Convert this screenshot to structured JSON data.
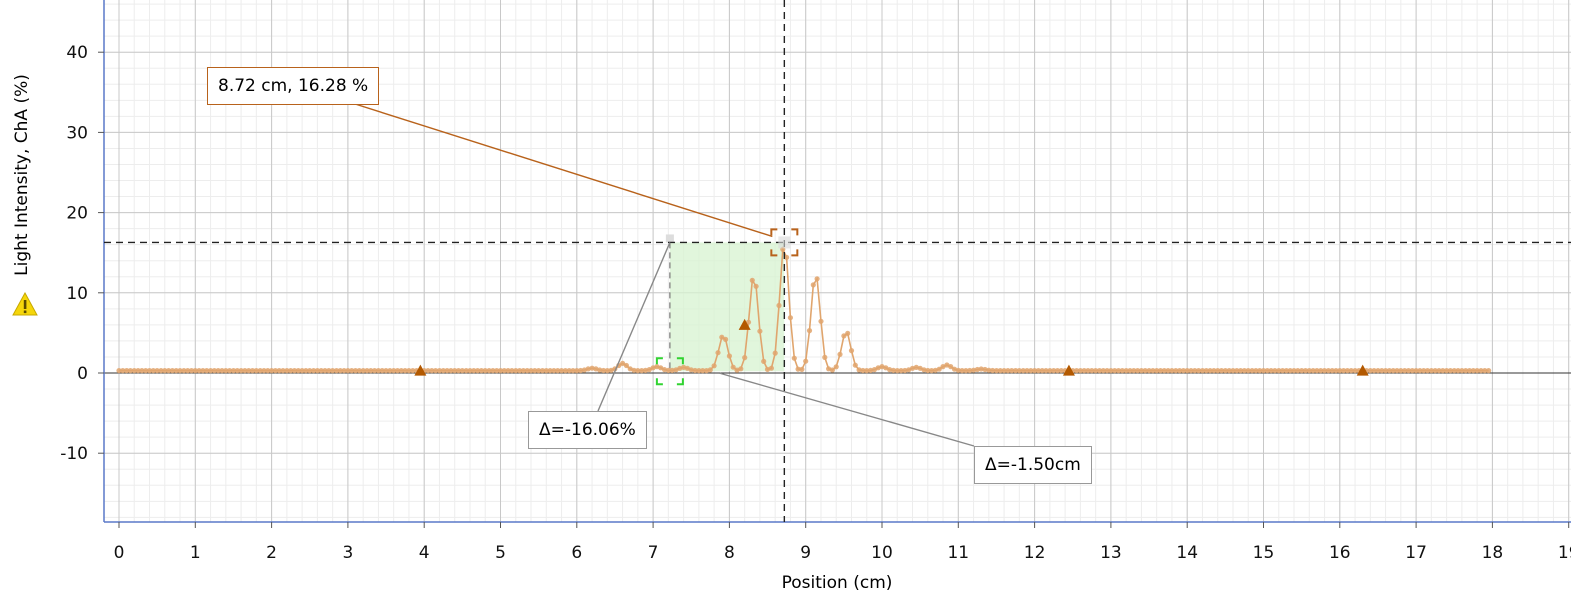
{
  "chart_data": {
    "type": "scatter",
    "xlabel": "Position (cm)",
    "ylabel": "Light Intensity, ChA (%)",
    "xlim": [
      -0.2,
      19.5
    ],
    "ylim": [
      -18.8,
      46
    ],
    "x_ticks": [
      "0",
      "1",
      "2",
      "3",
      "4",
      "5",
      "6",
      "7",
      "8",
      "9",
      "10",
      "11",
      "12",
      "13",
      "14",
      "15",
      "16",
      "17",
      "18",
      "19"
    ],
    "y_ticks": [
      "-10",
      "0",
      "10",
      "20",
      "30",
      "40"
    ],
    "grid": true,
    "series": [
      {
        "connected_dots": true,
        "color": "#e0a56d",
        "x_range": [
          0,
          17.95
        ],
        "step": 0.05,
        "baseline": 0.3,
        "peaks": [
          {
            "x": 6.2,
            "y": 0.6
          },
          {
            "x": 6.6,
            "y": 1.2
          },
          {
            "x": 7.05,
            "y": 0.8
          },
          {
            "x": 7.4,
            "y": 0.7
          },
          {
            "x": 7.92,
            "y": 4.7
          },
          {
            "x": 8.32,
            "y": 12.2
          },
          {
            "x": 8.72,
            "y": 16.28
          },
          {
            "x": 9.13,
            "y": 12.4
          },
          {
            "x": 9.53,
            "y": 5.2
          },
          {
            "x": 10.0,
            "y": 0.8
          },
          {
            "x": 10.45,
            "y": 0.7
          },
          {
            "x": 10.85,
            "y": 1.0
          },
          {
            "x": 11.3,
            "y": 0.5
          }
        ],
        "markers": [
          {
            "x": 3.95,
            "y": 0.3
          },
          {
            "x": 8.2,
            "y": 6.0
          },
          {
            "x": 12.45,
            "y": 0.3
          },
          {
            "x": 16.3,
            "y": 0.3
          }
        ]
      }
    ],
    "crosshair": {
      "x": 8.72,
      "y": 16.28
    },
    "delta_region": {
      "x1": 7.22,
      "x2": 8.72,
      "y1": 0.22,
      "y2": 16.28
    },
    "annotations": {
      "coord_label": "8.72 cm, 16.28 %",
      "delta_y_label": "Δ=-16.06%",
      "delta_x_label": "Δ=-1.50cm"
    },
    "colors": {
      "data": "#e0a56d",
      "marker": "#b35900",
      "callout_border": "#b8621b",
      "shade": "#d7f3d0",
      "bracket": "#31d331",
      "axis": "#5a78c8"
    }
  },
  "warning_icon": "warning-icon"
}
